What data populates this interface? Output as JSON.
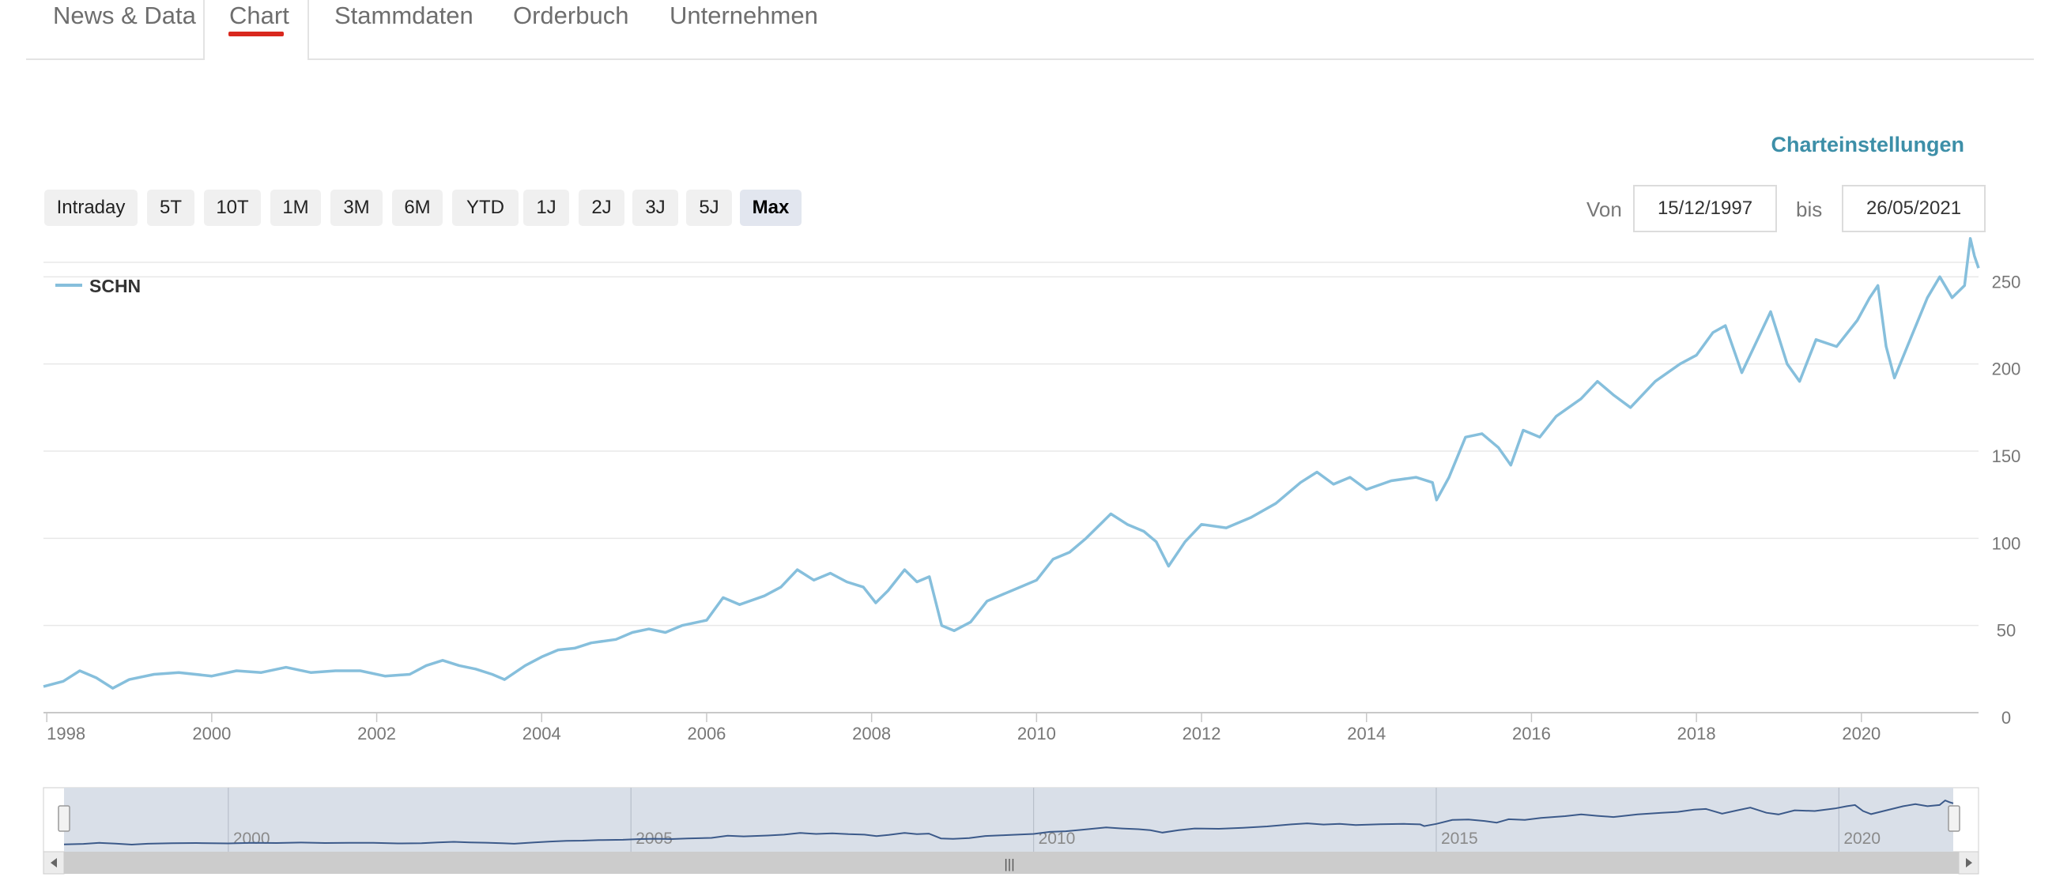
{
  "tabs": [
    {
      "label": "News & Data",
      "active": false
    },
    {
      "label": "Chart",
      "active": true
    },
    {
      "label": "Stammdaten",
      "active": false
    },
    {
      "label": "Orderbuch",
      "active": false
    },
    {
      "label": "Unternehmen",
      "active": false
    }
  ],
  "settings_label": "Charteinstellungen",
  "range_buttons": [
    "Intraday",
    "5T",
    "10T",
    "1M",
    "3M",
    "6M",
    "YTD",
    "1J",
    "2J",
    "3J",
    "5J",
    "Max"
  ],
  "active_range": "Max",
  "date_range": {
    "from_label": "Von",
    "from_value": "15/12/1997",
    "to_label": "bis",
    "to_value": "26/05/2021"
  },
  "colors": {
    "series_line": "#86bfdc",
    "navigator_line": "#3c5a8a",
    "navigator_mask": "#d9dfe8",
    "accent_red": "#d9281e",
    "link_teal": "#3d8fa8"
  },
  "chart_data": {
    "type": "line",
    "series": [
      {
        "name": "SCHN",
        "points": [
          [
            1997.96,
            15
          ],
          [
            1998.2,
            18
          ],
          [
            1998.4,
            24
          ],
          [
            1998.6,
            20
          ],
          [
            1998.8,
            14
          ],
          [
            1999.0,
            19
          ],
          [
            1999.3,
            22
          ],
          [
            1999.6,
            23
          ],
          [
            2000.0,
            21
          ],
          [
            2000.3,
            24
          ],
          [
            2000.6,
            23
          ],
          [
            2000.9,
            26
          ],
          [
            2001.2,
            23
          ],
          [
            2001.5,
            24
          ],
          [
            2001.8,
            24
          ],
          [
            2002.1,
            21
          ],
          [
            2002.4,
            22
          ],
          [
            2002.6,
            27
          ],
          [
            2002.8,
            30
          ],
          [
            2003.0,
            27
          ],
          [
            2003.2,
            25
          ],
          [
            2003.4,
            22
          ],
          [
            2003.55,
            19
          ],
          [
            2003.8,
            27
          ],
          [
            2004.0,
            32
          ],
          [
            2004.2,
            36
          ],
          [
            2004.4,
            37
          ],
          [
            2004.6,
            40
          ],
          [
            2004.9,
            42
          ],
          [
            2005.1,
            46
          ],
          [
            2005.3,
            48
          ],
          [
            2005.5,
            46
          ],
          [
            2005.7,
            50
          ],
          [
            2006.0,
            53
          ],
          [
            2006.2,
            66
          ],
          [
            2006.4,
            62
          ],
          [
            2006.7,
            67
          ],
          [
            2006.9,
            72
          ],
          [
            2007.1,
            82
          ],
          [
            2007.3,
            76
          ],
          [
            2007.5,
            80
          ],
          [
            2007.7,
            75
          ],
          [
            2007.9,
            72
          ],
          [
            2008.05,
            63
          ],
          [
            2008.2,
            70
          ],
          [
            2008.4,
            82
          ],
          [
            2008.55,
            75
          ],
          [
            2008.7,
            78
          ],
          [
            2008.85,
            50
          ],
          [
            2009.0,
            47
          ],
          [
            2009.2,
            52
          ],
          [
            2009.4,
            64
          ],
          [
            2009.6,
            68
          ],
          [
            2009.8,
            72
          ],
          [
            2010.0,
            76
          ],
          [
            2010.2,
            88
          ],
          [
            2010.4,
            92
          ],
          [
            2010.6,
            100
          ],
          [
            2010.9,
            114
          ],
          [
            2011.1,
            108
          ],
          [
            2011.3,
            104
          ],
          [
            2011.45,
            98
          ],
          [
            2011.6,
            84
          ],
          [
            2011.8,
            98
          ],
          [
            2012.0,
            108
          ],
          [
            2012.3,
            106
          ],
          [
            2012.6,
            112
          ],
          [
            2012.9,
            120
          ],
          [
            2013.2,
            132
          ],
          [
            2013.4,
            138
          ],
          [
            2013.6,
            131
          ],
          [
            2013.8,
            135
          ],
          [
            2014.0,
            128
          ],
          [
            2014.3,
            133
          ],
          [
            2014.6,
            135
          ],
          [
            2014.8,
            132
          ],
          [
            2014.85,
            122
          ],
          [
            2015.0,
            135
          ],
          [
            2015.2,
            158
          ],
          [
            2015.4,
            160
          ],
          [
            2015.6,
            152
          ],
          [
            2015.75,
            142
          ],
          [
            2015.9,
            162
          ],
          [
            2016.1,
            158
          ],
          [
            2016.3,
            170
          ],
          [
            2016.6,
            180
          ],
          [
            2016.8,
            190
          ],
          [
            2017.0,
            182
          ],
          [
            2017.2,
            175
          ],
          [
            2017.5,
            190
          ],
          [
            2017.8,
            200
          ],
          [
            2018.0,
            205
          ],
          [
            2018.2,
            218
          ],
          [
            2018.35,
            222
          ],
          [
            2018.55,
            195
          ],
          [
            2018.75,
            215
          ],
          [
            2018.9,
            230
          ],
          [
            2019.0,
            215
          ],
          [
            2019.1,
            200
          ],
          [
            2019.25,
            190
          ],
          [
            2019.45,
            214
          ],
          [
            2019.7,
            210
          ],
          [
            2019.95,
            225
          ],
          [
            2020.1,
            238
          ],
          [
            2020.2,
            245
          ],
          [
            2020.3,
            210
          ],
          [
            2020.4,
            192
          ],
          [
            2020.6,
            215
          ],
          [
            2020.8,
            238
          ],
          [
            2020.95,
            250
          ],
          [
            2021.1,
            238
          ],
          [
            2021.25,
            245
          ],
          [
            2021.32,
            272
          ],
          [
            2021.37,
            262
          ],
          [
            2021.42,
            255
          ]
        ]
      }
    ],
    "x_ticks": [
      "1998",
      "2000",
      "2002",
      "2004",
      "2006",
      "2008",
      "2010",
      "2012",
      "2014",
      "2016",
      "2018",
      "2020"
    ],
    "y_ticks": [
      "0",
      "50",
      "100",
      "150",
      "200",
      "250"
    ],
    "xlim": [
      1997.96,
      2021.42
    ],
    "ylim": [
      0,
      300
    ],
    "legend_position": "top-left",
    "grid": true,
    "navigator": {
      "x_ticks": [
        "2000",
        "2005",
        "2010",
        "2015",
        "2020"
      ],
      "handle_symbol": "|||"
    }
  }
}
